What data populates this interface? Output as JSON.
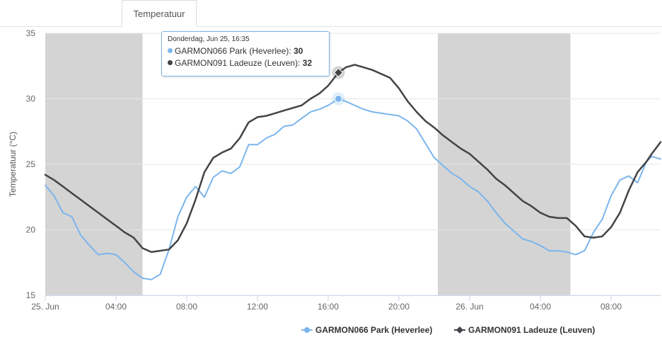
{
  "tabs": [
    {
      "label": "Temperatuur",
      "active": true
    }
  ],
  "chart_data": {
    "type": "line",
    "ylabel": "Temperatuur (°C)",
    "ylim": [
      15,
      35
    ],
    "yticks": [
      "15",
      "20",
      "25",
      "30",
      "35"
    ],
    "x_unit": "hours since 25 Jun 00:00",
    "xlim": [
      0,
      34.8
    ],
    "xticks": [
      {
        "label": "25. Jun",
        "x": 0
      },
      {
        "label": "04:00",
        "x": 4
      },
      {
        "label": "08:00",
        "x": 8
      },
      {
        "label": "12:00",
        "x": 12
      },
      {
        "label": "16:00",
        "x": 16
      },
      {
        "label": "20:00",
        "x": 20
      },
      {
        "label": "26. Jun",
        "x": 24
      },
      {
        "label": "04:00",
        "x": 28
      },
      {
        "label": "08:00",
        "x": 32
      }
    ],
    "night_bands": [
      [
        0,
        5.5
      ],
      [
        22.2,
        29.7
      ]
    ],
    "grid": true,
    "legend_position": "bottom-right",
    "series": [
      {
        "name": "GARMON066 Park (Heverlee)",
        "color": "#7cb5ec",
        "marker": "circle",
        "points": [
          [
            0,
            23.4
          ],
          [
            0.5,
            22.6
          ],
          [
            1,
            21.3
          ],
          [
            1.5,
            21.0
          ],
          [
            2,
            19.6
          ],
          [
            2.5,
            18.8
          ],
          [
            3,
            18.1
          ],
          [
            3.5,
            18.2
          ],
          [
            4,
            18.1
          ],
          [
            4.5,
            17.5
          ],
          [
            5,
            16.8
          ],
          [
            5.5,
            16.3
          ],
          [
            6,
            16.2
          ],
          [
            6.5,
            16.6
          ],
          [
            7,
            18.5
          ],
          [
            7.5,
            21.0
          ],
          [
            8,
            22.5
          ],
          [
            8.5,
            23.3
          ],
          [
            9,
            22.5
          ],
          [
            9.5,
            24.0
          ],
          [
            10,
            24.5
          ],
          [
            10.5,
            24.3
          ],
          [
            11,
            24.8
          ],
          [
            11.5,
            26.5
          ],
          [
            12,
            26.5
          ],
          [
            12.5,
            27.0
          ],
          [
            13,
            27.3
          ],
          [
            13.5,
            27.9
          ],
          [
            14,
            28.0
          ],
          [
            14.5,
            28.5
          ],
          [
            15,
            29.0
          ],
          [
            15.5,
            29.2
          ],
          [
            16,
            29.5
          ],
          [
            16.58,
            30.0
          ],
          [
            17,
            29.8
          ],
          [
            17.5,
            29.5
          ],
          [
            18,
            29.2
          ],
          [
            18.5,
            29.0
          ],
          [
            19,
            28.9
          ],
          [
            19.5,
            28.8
          ],
          [
            20,
            28.7
          ],
          [
            20.5,
            28.3
          ],
          [
            21,
            27.7
          ],
          [
            21.5,
            26.6
          ],
          [
            22,
            25.5
          ],
          [
            22.5,
            24.9
          ],
          [
            23,
            24.3
          ],
          [
            23.5,
            23.9
          ],
          [
            24,
            23.3
          ],
          [
            24.5,
            22.9
          ],
          [
            25,
            22.2
          ],
          [
            25.5,
            21.3
          ],
          [
            26,
            20.5
          ],
          [
            26.5,
            19.9
          ],
          [
            27,
            19.3
          ],
          [
            27.5,
            19.1
          ],
          [
            28,
            18.8
          ],
          [
            28.5,
            18.4
          ],
          [
            29,
            18.4
          ],
          [
            29.5,
            18.3
          ],
          [
            30,
            18.1
          ],
          [
            30.5,
            18.4
          ],
          [
            31,
            19.8
          ],
          [
            31.5,
            20.8
          ],
          [
            32,
            22.6
          ],
          [
            32.5,
            23.8
          ],
          [
            33,
            24.1
          ],
          [
            33.5,
            23.6
          ],
          [
            34,
            25.2
          ],
          [
            34.3,
            25.6
          ],
          [
            34.8,
            25.4
          ]
        ]
      },
      {
        "name": "GARMON091 Ladeuze (Leuven)",
        "color": "#434348",
        "marker": "diamond",
        "points": [
          [
            0,
            24.2
          ],
          [
            0.5,
            23.8
          ],
          [
            1,
            23.3
          ],
          [
            1.5,
            22.8
          ],
          [
            2,
            22.3
          ],
          [
            2.5,
            21.8
          ],
          [
            3,
            21.3
          ],
          [
            3.5,
            20.8
          ],
          [
            4,
            20.3
          ],
          [
            4.5,
            19.8
          ],
          [
            5,
            19.4
          ],
          [
            5.5,
            18.6
          ],
          [
            6,
            18.3
          ],
          [
            6.5,
            18.4
          ],
          [
            7,
            18.5
          ],
          [
            7.5,
            19.2
          ],
          [
            8,
            20.5
          ],
          [
            8.5,
            22.3
          ],
          [
            9,
            24.4
          ],
          [
            9.5,
            25.5
          ],
          [
            10,
            25.9
          ],
          [
            10.5,
            26.2
          ],
          [
            11,
            27.0
          ],
          [
            11.5,
            28.2
          ],
          [
            12,
            28.6
          ],
          [
            12.5,
            28.7
          ],
          [
            13,
            28.9
          ],
          [
            13.5,
            29.1
          ],
          [
            14,
            29.3
          ],
          [
            14.5,
            29.5
          ],
          [
            15,
            30.0
          ],
          [
            15.5,
            30.4
          ],
          [
            16,
            31.0
          ],
          [
            16.58,
            32.0
          ],
          [
            17,
            32.4
          ],
          [
            17.5,
            32.6
          ],
          [
            18,
            32.4
          ],
          [
            18.5,
            32.2
          ],
          [
            19,
            31.9
          ],
          [
            19.5,
            31.6
          ],
          [
            20,
            30.8
          ],
          [
            20.5,
            29.8
          ],
          [
            21,
            29.0
          ],
          [
            21.5,
            28.3
          ],
          [
            22,
            27.8
          ],
          [
            22.5,
            27.2
          ],
          [
            23,
            26.7
          ],
          [
            23.5,
            26.2
          ],
          [
            24,
            25.8
          ],
          [
            24.5,
            25.2
          ],
          [
            25,
            24.6
          ],
          [
            25.5,
            23.9
          ],
          [
            26,
            23.4
          ],
          [
            26.5,
            22.8
          ],
          [
            27,
            22.2
          ],
          [
            27.5,
            21.8
          ],
          [
            28,
            21.3
          ],
          [
            28.5,
            21.0
          ],
          [
            29,
            20.9
          ],
          [
            29.5,
            20.9
          ],
          [
            30,
            20.3
          ],
          [
            30.5,
            19.5
          ],
          [
            31,
            19.4
          ],
          [
            31.5,
            19.5
          ],
          [
            32,
            20.2
          ],
          [
            32.5,
            21.3
          ],
          [
            33,
            23.0
          ],
          [
            33.5,
            24.4
          ],
          [
            34,
            25.2
          ],
          [
            34.3,
            25.8
          ],
          [
            34.8,
            26.7
          ]
        ]
      }
    ],
    "highlight_x": 16.58
  },
  "tooltip": {
    "header": "Donderdag, Jun 25, 16:35",
    "rows": [
      {
        "name": "GARMON066 Park (Heverlee)",
        "value": "30",
        "color": "#7cb5ec"
      },
      {
        "name": "GARMON091 Ladeuze (Leuven)",
        "value": "32",
        "color": "#434348"
      }
    ]
  }
}
